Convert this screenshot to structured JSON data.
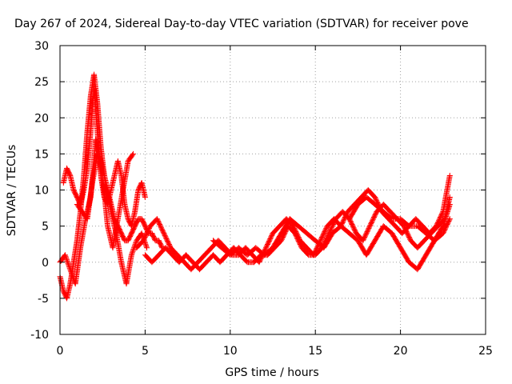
{
  "chart_data": {
    "type": "scatter",
    "title": "Day 267 of 2024, Sidereal Day-to-day VTEC variation (SDTVAR) for receiver pove",
    "xlabel": "GPS time / hours",
    "ylabel": "SDTVAR / TECUs",
    "xlim": [
      0,
      25
    ],
    "ylim": [
      -10,
      30
    ],
    "xticks": [
      0,
      5,
      10,
      15,
      20,
      25
    ],
    "yticks": [
      -10,
      -5,
      0,
      5,
      10,
      15,
      20,
      25,
      30
    ],
    "grid": true,
    "marker": "+",
    "color": "#ff0000",
    "series": [
      {
        "name": "s1",
        "x": [
          0.0,
          0.2,
          0.4,
          0.6,
          0.8,
          1.0,
          1.2,
          1.4,
          1.6,
          1.8,
          2.0,
          2.2,
          2.4,
          2.6,
          2.8,
          3.0,
          3.2,
          3.4,
          3.6,
          3.8,
          4.0,
          4.2,
          4.4,
          4.6,
          4.8,
          5.0,
          5.2,
          5.4,
          5.6,
          5.8,
          6.0
        ],
        "y": [
          -2,
          -4,
          -5,
          -3,
          0,
          3,
          7,
          12,
          18,
          23,
          26,
          22,
          16,
          12,
          10,
          8,
          6,
          5,
          4,
          3,
          3,
          4,
          5,
          6,
          6,
          5,
          4,
          4,
          3,
          3,
          2
        ]
      },
      {
        "name": "s2",
        "x": [
          0.2,
          0.4,
          0.6,
          0.8,
          1.0,
          1.2,
          1.4,
          1.6,
          1.8,
          2.0,
          2.2,
          2.4,
          2.6,
          2.8,
          3.0,
          3.2,
          3.4,
          3.6,
          3.8,
          4.0,
          4.2,
          4.4,
          4.6,
          4.8,
          5.0
        ],
        "y": [
          11,
          13,
          12,
          10,
          9,
          8,
          10,
          13,
          18,
          24,
          18,
          12,
          9,
          8,
          10,
          12,
          14,
          12,
          8,
          6,
          5,
          7,
          10,
          11,
          9
        ]
      },
      {
        "name": "s3",
        "x": [
          0.0,
          0.3,
          0.6,
          0.9,
          1.2,
          1.5,
          1.8,
          2.1,
          2.4,
          2.7,
          3.0,
          3.3,
          3.6,
          3.9,
          4.2,
          4.5,
          4.8,
          5.1
        ],
        "y": [
          0,
          1,
          -1,
          -3,
          2,
          6,
          9,
          17,
          14,
          11,
          7,
          4,
          0,
          -3,
          1,
          3,
          4,
          2
        ]
      },
      {
        "name": "s4",
        "x": [
          1.0,
          1.3,
          1.6,
          1.9,
          2.2,
          2.5,
          2.8,
          3.1,
          3.4,
          3.7,
          4.0,
          4.3
        ],
        "y": [
          8,
          7,
          6,
          11,
          15,
          12,
          5,
          2,
          6,
          10,
          14,
          15
        ]
      },
      {
        "name": "s5",
        "x": [
          4.5,
          4.9,
          5.3,
          5.7,
          6.1,
          6.5,
          6.9,
          7.3,
          7.7,
          8.1,
          8.5,
          8.9,
          9.3,
          9.7,
          10.1,
          10.5,
          10.9,
          11.3,
          11.7,
          12.1,
          12.5,
          12.9,
          13.3,
          13.7,
          14.1,
          14.5,
          14.9,
          15.3,
          15.7,
          16.1,
          16.5,
          16.9,
          17.3,
          17.7,
          18.1,
          18.5,
          18.9,
          19.3,
          19.7,
          20.1,
          20.5,
          20.9,
          21.3,
          21.7,
          22.1,
          22.5,
          22.9
        ],
        "y": [
          2,
          3,
          5,
          6,
          4,
          2,
          1,
          0,
          -1,
          0,
          1,
          2,
          3,
          2,
          1,
          1,
          2,
          1,
          0,
          2,
          4,
          5,
          6,
          5,
          3,
          2,
          1,
          3,
          5,
          6,
          5,
          7,
          8,
          9,
          10,
          9,
          7,
          6,
          5,
          4,
          5,
          6,
          5,
          4,
          5,
          7,
          12
        ]
      },
      {
        "name": "s6",
        "x": [
          5.0,
          5.4,
          5.8,
          6.2,
          6.6,
          7.0,
          7.4,
          7.8,
          8.2,
          8.6,
          9.0,
          9.4,
          9.8,
          10.2,
          10.6,
          11.0,
          11.4,
          11.8,
          12.2,
          12.6,
          13.0,
          13.4,
          13.8,
          14.2,
          14.6,
          15.0,
          15.4,
          15.8,
          16.2,
          16.6,
          17.0,
          17.4,
          17.8,
          18.2,
          18.6,
          19.0,
          19.4,
          19.8,
          20.2,
          20.6,
          21.0,
          21.4,
          21.8,
          22.2,
          22.6,
          22.9
        ],
        "y": [
          1,
          0,
          1,
          2,
          1,
          0,
          1,
          0,
          -1,
          0,
          1,
          0,
          1,
          2,
          1,
          0,
          0,
          1,
          1,
          2,
          3,
          5,
          4,
          2,
          1,
          1,
          2,
          4,
          6,
          7,
          6,
          4,
          3,
          5,
          7,
          8,
          7,
          6,
          5,
          3,
          2,
          3,
          4,
          5,
          6,
          9
        ]
      },
      {
        "name": "s7",
        "x": [
          9.0,
          9.5,
          10.0,
          10.5,
          11.0,
          11.5,
          12.0,
          12.5,
          13.0,
          13.5,
          14.0,
          14.5,
          15.0,
          15.5,
          16.0,
          16.5,
          17.0,
          17.5,
          18.0,
          18.5,
          19.0,
          19.5,
          20.0,
          20.5,
          21.0,
          21.5,
          22.0,
          22.5,
          22.9
        ],
        "y": [
          3,
          2,
          1,
          2,
          1,
          2,
          1,
          2,
          4,
          6,
          5,
          4,
          3,
          2,
          4,
          5,
          4,
          3,
          1,
          3,
          5,
          4,
          2,
          0,
          -1,
          1,
          3,
          5,
          8
        ]
      },
      {
        "name": "s8",
        "x": [
          17.0,
          17.5,
          18.0,
          18.5,
          19.0,
          19.5,
          20.0,
          20.5,
          21.0,
          21.5,
          22.0,
          22.5,
          22.9
        ],
        "y": [
          6,
          8,
          9,
          8,
          7,
          6,
          6,
          5,
          5,
          4,
          3,
          4,
          6
        ]
      }
    ]
  }
}
